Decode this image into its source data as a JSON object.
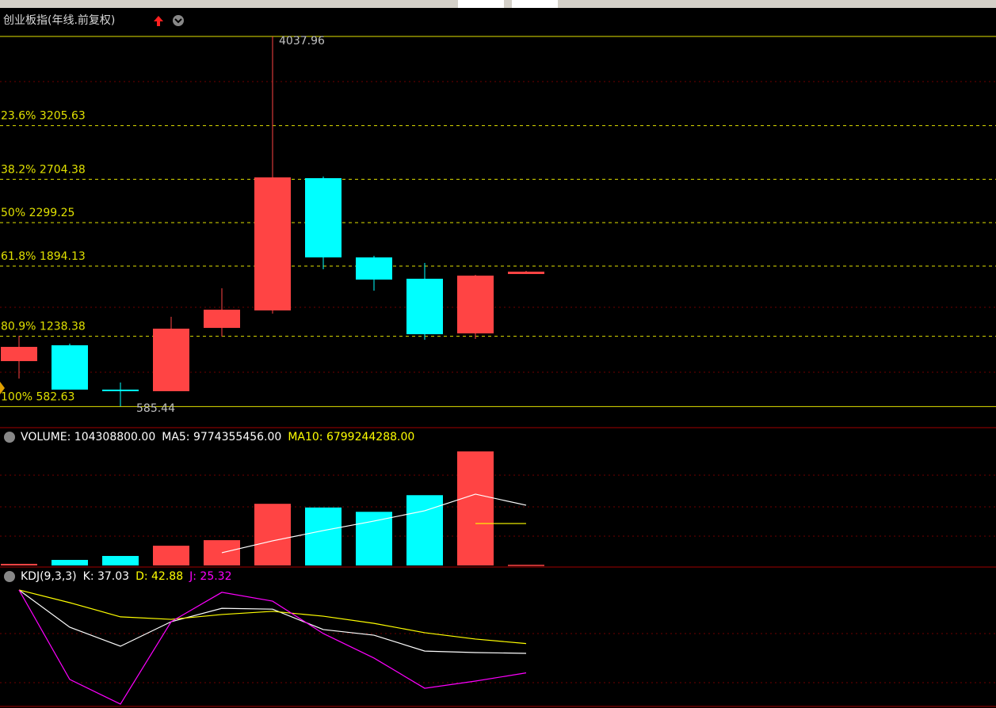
{
  "header": {
    "title": "创业板指(年线.前复权)"
  },
  "price_chart": {
    "up_color": "#ff4444",
    "down_color": "#00ffff",
    "candles": [
      {
        "open": 1007,
        "high": 1243,
        "low": 844,
        "close": 1140
      },
      {
        "open": 1155,
        "high": 1170,
        "low": 741,
        "close": 741
      },
      {
        "open": 741,
        "high": 807,
        "low": 585.44,
        "close": 726
      },
      {
        "open": 726,
        "high": 1421,
        "low": 726,
        "close": 1310
      },
      {
        "open": 1317,
        "high": 1687,
        "low": 1236,
        "close": 1487
      },
      {
        "open": 1480,
        "high": 4037.96,
        "low": 1450,
        "close": 2722
      },
      {
        "open": 2715,
        "high": 2730,
        "low": 1864,
        "close": 1975
      },
      {
        "open": 1975,
        "high": 1990,
        "low": 1665,
        "close": 1768
      },
      {
        "open": 1776,
        "high": 1924,
        "low": 1206,
        "close": 1258
      },
      {
        "open": 1266,
        "high": 1813,
        "low": 1214,
        "close": 1805
      },
      {
        "open": 1820,
        "high": 1850,
        "low": 1820,
        "close": 1842
      }
    ],
    "high_label": "4037.96",
    "low_label": "585.44",
    "fib_levels": [
      {
        "label": "23.6% 3205.63",
        "value": 3205.63
      },
      {
        "label": "38.2% 2704.38",
        "value": 2704.38
      },
      {
        "label": "50% 2299.25",
        "value": 2299.25
      },
      {
        "label": "61.8% 1894.13",
        "value": 1894.13
      },
      {
        "label": "80.9% 1238.38",
        "value": 1238.38
      },
      {
        "label": "100% 582.63",
        "value": 582.63
      }
    ]
  },
  "volume_panel": {
    "legend": [
      "VOLUME: 104308800.00",
      "MA5: 9774355456.00",
      "MA10: 6799244288.00"
    ],
    "legend_colors": [
      "#ffffff",
      "#ffffff",
      "#ffff00"
    ],
    "volumes": [
      260000000,
      900000000,
      1540000000,
      3200000000,
      4100000000,
      10000000000,
      9400000000,
      8700000000,
      11400000000,
      18500000000,
      104308800
    ],
    "ma5": [
      null,
      null,
      null,
      null,
      2060000000,
      3990000000,
      5660000000,
      7200000000,
      8870000000,
      11570000000,
      9774355456
    ],
    "ma10": [
      null,
      null,
      null,
      null,
      null,
      null,
      null,
      null,
      null,
      6799244288,
      6799244288
    ],
    "ma5_color": "#ffffff",
    "ma10_color": "#ffff00"
  },
  "kdj_panel": {
    "legend": [
      "KDJ(9,3,3)",
      "K: 37.03",
      "D: 42.88",
      "J: 25.32"
    ],
    "legend_colors": [
      "#ffffff",
      "#ffffff",
      "#ffff00",
      "#ff00ff"
    ],
    "series": [
      {
        "name": "K",
        "color": "#ffffff",
        "values": [
          75,
          52.7,
          41.3,
          56,
          64,
          63.5,
          51.3,
          47.9,
          38.4,
          37.5,
          37.03
        ]
      },
      {
        "name": "D",
        "color": "#ffff00",
        "values": [
          75,
          67.4,
          58.9,
          57.4,
          60.3,
          62.2,
          59.3,
          55,
          49.4,
          45.6,
          42.88
        ]
      },
      {
        "name": "J",
        "color": "#ff00ff",
        "values": [
          75,
          21.4,
          6.6,
          56,
          73.6,
          68.3,
          48.9,
          34.2,
          16.1,
          20.4,
          25.32
        ]
      }
    ]
  }
}
